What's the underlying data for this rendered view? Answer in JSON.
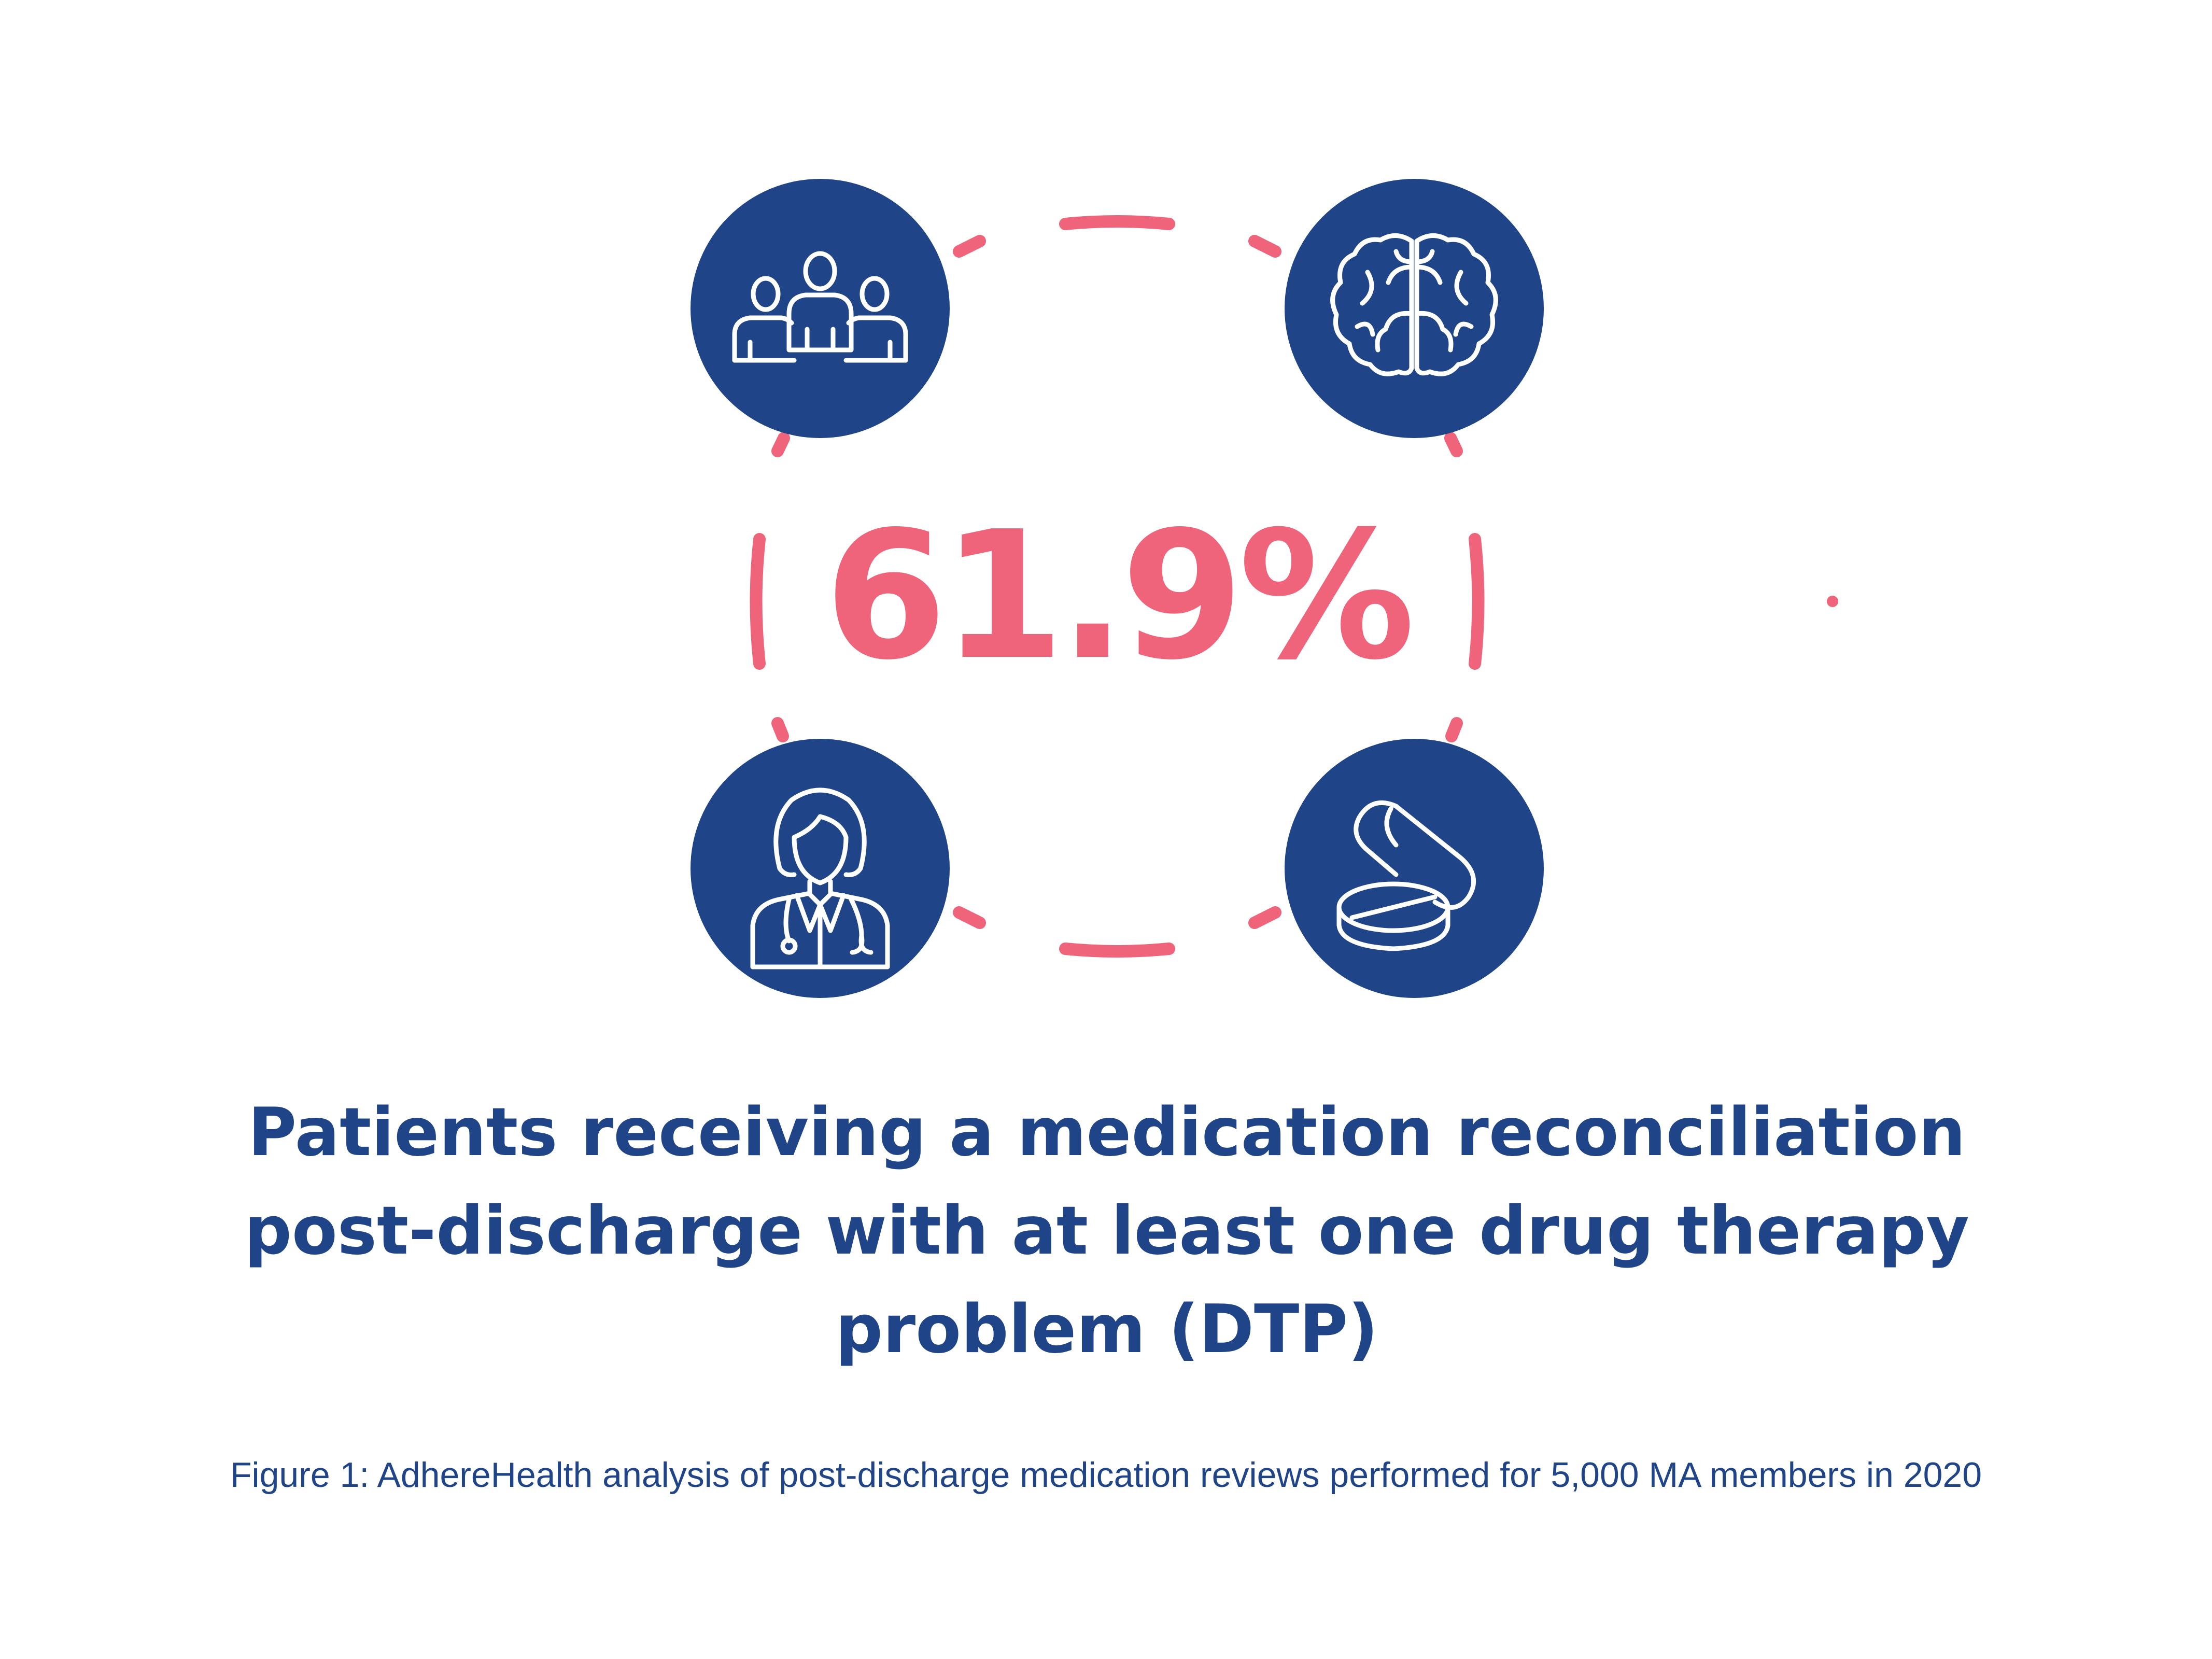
{
  "infographic": {
    "stat_value": "61.9%",
    "headline": "Patients receiving a medication reconciliation post-discharge with at least one drug therapy problem (DTP)",
    "caption": "Figure 1: AdhereHealth analysis of post-discharge medication reviews performed for 5,000 MA members in 2020",
    "icons": [
      "people-group-icon",
      "brain-icon",
      "female-doctor-icon",
      "pills-icon"
    ]
  },
  "colors": {
    "navy": "#1f4488",
    "pink": "#ef647a",
    "background": "#ffffff",
    "icon_stroke": "#ffffff"
  }
}
